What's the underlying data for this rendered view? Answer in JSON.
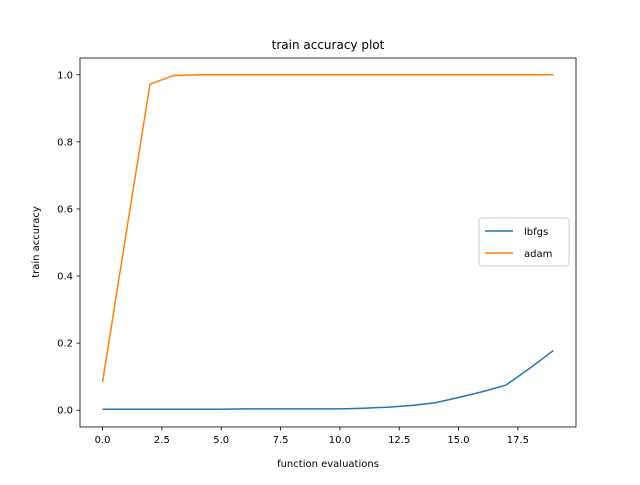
{
  "chart_data": {
    "type": "line",
    "title": "train accuracy plot",
    "xlabel": "function evaluations",
    "ylabel": "train accuracy",
    "xlim": [
      -0.95,
      19.95
    ],
    "ylim": [
      -0.05,
      1.05
    ],
    "xticks": [
      0.0,
      2.5,
      5.0,
      7.5,
      10.0,
      12.5,
      15.0,
      17.5
    ],
    "xtick_labels": [
      "0.0",
      "2.5",
      "5.0",
      "7.5",
      "10.0",
      "12.5",
      "15.0",
      "17.5"
    ],
    "yticks": [
      0.0,
      0.2,
      0.4,
      0.6,
      0.8,
      1.0
    ],
    "ytick_labels": [
      "0.0",
      "0.2",
      "0.4",
      "0.6",
      "0.8",
      "1.0"
    ],
    "grid": false,
    "legend_position": "center-right",
    "x": [
      0,
      1,
      2,
      3,
      4,
      5,
      6,
      7,
      8,
      9,
      10,
      11,
      12,
      13,
      14,
      15,
      16,
      17,
      18,
      19
    ],
    "series": [
      {
        "name": "lbfgs",
        "color": "#1f77b4",
        "values": [
          0.003,
          0.003,
          0.003,
          0.003,
          0.003,
          0.003,
          0.004,
          0.004,
          0.004,
          0.004,
          0.004,
          0.006,
          0.009,
          0.014,
          0.022,
          0.038,
          0.055,
          0.075,
          0.125,
          0.178
        ]
      },
      {
        "name": "adam",
        "color": "#ff7f0e",
        "values": [
          0.084,
          0.53,
          0.972,
          0.998,
          1.0,
          1.0,
          1.0,
          1.0,
          1.0,
          1.0,
          1.0,
          1.0,
          1.0,
          1.0,
          1.0,
          1.0,
          1.0,
          1.0,
          1.0,
          1.0
        ]
      }
    ]
  }
}
